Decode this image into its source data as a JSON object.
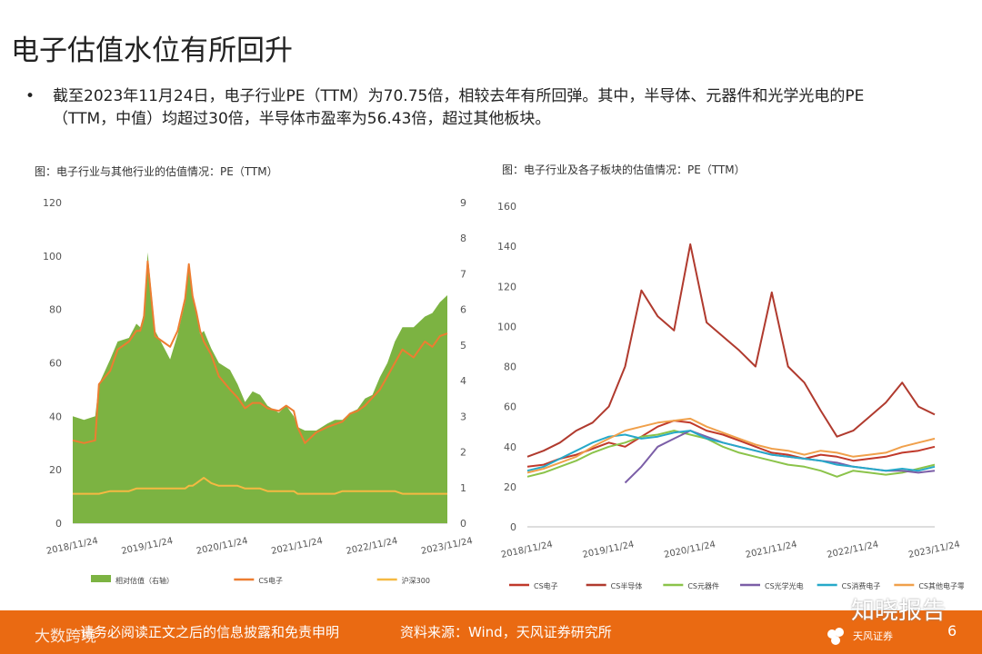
{
  "page": {
    "title": "电子估值水位有所回升",
    "bullet_marker": "•",
    "bullet_text": "截至2023年11月24日，电子行业PE（TTM）为70.75倍，相较去年有所回弹。其中，半导体、元器件和光学光电的PE（TTM，中值）均超过30倍，半导体市盈率为56.43倍，超过其他板块。",
    "footer_disclaimer": "请务必阅读正文之后的信息披露和免责申明",
    "footer_source": "资料来源：Wind，天风证券研究所",
    "page_number": "6",
    "watermark_left": "大数跨境",
    "watermark_right": "知晓报告",
    "brand_name": "天风证券",
    "colors": {
      "footer": "#ea6a12",
      "green_area": "#7cb342",
      "orange": "#ed7d31",
      "yellow": "#f5b942"
    }
  },
  "chart_data": [
    {
      "type": "area",
      "title": "图：电子行业与其他行业的估值情况：PE（TTM）",
      "x_tick_labels": [
        "2018/11/24",
        "2019/11/24",
        "2020/11/24",
        "2021/11/24",
        "2022/11/24",
        "2023/11/24"
      ],
      "ylim": [
        0,
        120
      ],
      "y_ticks": [
        "0",
        "20",
        "40",
        "60",
        "80",
        "100",
        "120"
      ],
      "y2lim": [
        0,
        9
      ],
      "y2_ticks": [
        "0",
        "1",
        "2",
        "3",
        "4",
        "5",
        "6",
        "7",
        "8",
        "9"
      ],
      "x": [
        0,
        0.15,
        0.3,
        0.35,
        0.5,
        0.6,
        0.75,
        0.85,
        0.9,
        0.95,
        1.0,
        1.1,
        1.2,
        1.3,
        1.4,
        1.5,
        1.55,
        1.6,
        1.65,
        1.7,
        1.75,
        1.85,
        1.95,
        2.1,
        2.2,
        2.3,
        2.4,
        2.5,
        2.6,
        2.75,
        2.85,
        2.95,
        3.0,
        3.1,
        3.25,
        3.4,
        3.5,
        3.6,
        3.7,
        3.8,
        3.9,
        4.0,
        4.1,
        4.2,
        4.3,
        4.4,
        4.55,
        4.6,
        4.7,
        4.8,
        4.9,
        5.0
      ],
      "series": [
        {
          "name": "相对估值（右轴）",
          "color": "#7cb342",
          "axis": "right",
          "values": [
            3.0,
            2.9,
            3.0,
            3.9,
            4.6,
            5.1,
            5.2,
            5.6,
            5.5,
            5.9,
            7.6,
            5.4,
            5.0,
            4.6,
            5.3,
            6.2,
            7.3,
            6.4,
            6.0,
            5.3,
            5.4,
            4.9,
            4.5,
            4.3,
            3.9,
            3.4,
            3.7,
            3.6,
            3.3,
            3.1,
            3.3,
            3.0,
            2.7,
            2.6,
            2.6,
            2.8,
            2.9,
            2.9,
            3.1,
            3.2,
            3.5,
            3.6,
            4.1,
            4.5,
            5.1,
            5.5,
            5.5,
            5.6,
            5.8,
            5.9,
            6.2,
            6.4
          ]
        },
        {
          "name": "CS电子",
          "color": "#ed7d31",
          "axis": "left",
          "values": [
            31,
            30,
            31,
            52,
            57,
            65,
            68,
            72,
            72,
            77,
            98,
            70,
            68,
            66,
            72,
            84,
            97,
            85,
            79,
            72,
            68,
            63,
            55,
            50,
            47,
            43,
            45,
            45,
            43,
            42,
            44,
            42,
            36,
            30,
            34,
            36,
            37,
            38,
            41,
            42,
            44,
            47,
            50,
            55,
            60,
            65,
            62,
            64,
            68,
            66,
            70,
            71
          ]
        },
        {
          "name": "沪深300",
          "color": "#f5b942",
          "axis": "left",
          "values": [
            11,
            11,
            11,
            11,
            12,
            12,
            12,
            13,
            13,
            13,
            13,
            13,
            13,
            13,
            13,
            13,
            14,
            14,
            15,
            16,
            17,
            15,
            14,
            14,
            14,
            13,
            13,
            13,
            12,
            12,
            12,
            12,
            11,
            11,
            11,
            11,
            11,
            12,
            12,
            12,
            12,
            12,
            12,
            12,
            12,
            11,
            11,
            11,
            11,
            11,
            11,
            11
          ]
        }
      ],
      "legend_position": "bottom"
    },
    {
      "type": "line",
      "title": "图：电子行业及各子板块的估值情况：PE（TTM）",
      "x_tick_labels": [
        "2018/11/24",
        "2019/11/24",
        "2020/11/24",
        "2021/11/24",
        "2022/11/24",
        "2023/11/24"
      ],
      "ylim": [
        0,
        160
      ],
      "y_ticks": [
        "0",
        "20",
        "40",
        "60",
        "80",
        "100",
        "120",
        "140",
        "160"
      ],
      "x": [
        0,
        0.2,
        0.4,
        0.6,
        0.8,
        1.0,
        1.2,
        1.4,
        1.6,
        1.8,
        2.0,
        2.2,
        2.4,
        2.6,
        2.8,
        3.0,
        3.2,
        3.4,
        3.6,
        3.8,
        4.0,
        4.2,
        4.4,
        4.6,
        4.8,
        5.0
      ],
      "series": [
        {
          "name": "CS电子",
          "color": "#c0392b",
          "values": [
            30,
            31,
            34,
            36,
            39,
            42,
            40,
            45,
            50,
            53,
            52,
            48,
            46,
            43,
            40,
            37,
            36,
            34,
            36,
            35,
            33,
            34,
            35,
            37,
            38,
            40
          ]
        },
        {
          "name": "CS半导体",
          "color": "#b03a2e",
          "values": [
            35,
            38,
            42,
            48,
            52,
            60,
            80,
            118,
            105,
            98,
            141,
            102,
            95,
            88,
            80,
            117,
            80,
            72,
            58,
            45,
            48,
            55,
            62,
            72,
            60,
            56
          ]
        },
        {
          "name": "CS元器件",
          "color": "#8bc34a",
          "values": [
            25,
            27,
            30,
            33,
            37,
            40,
            42,
            45,
            46,
            48,
            46,
            44,
            40,
            37,
            35,
            33,
            31,
            30,
            28,
            25,
            28,
            27,
            26,
            27,
            29,
            31
          ]
        },
        {
          "name": "CS光学光电",
          "color": "#7b5ea7",
          "values": [
            null,
            null,
            null,
            null,
            null,
            null,
            22,
            30,
            40,
            44,
            48,
            45,
            42,
            40,
            38,
            36,
            35,
            34,
            33,
            32,
            30,
            29,
            28,
            28,
            27,
            28
          ]
        },
        {
          "name": "CS消费电子",
          "color": "#26a9c9",
          "values": [
            28,
            30,
            34,
            38,
            42,
            45,
            46,
            44,
            45,
            47,
            48,
            44,
            42,
            40,
            38,
            36,
            35,
            34,
            33,
            31,
            30,
            29,
            28,
            29,
            28,
            30
          ]
        },
        {
          "name": "CS其他电子零组件II",
          "color": "#f0a04b",
          "values": [
            27,
            29,
            32,
            35,
            40,
            44,
            48,
            50,
            52,
            53,
            54,
            50,
            47,
            44,
            41,
            39,
            38,
            36,
            38,
            37,
            35,
            36,
            37,
            40,
            42,
            44
          ]
        }
      ],
      "legend_position": "bottom"
    }
  ]
}
